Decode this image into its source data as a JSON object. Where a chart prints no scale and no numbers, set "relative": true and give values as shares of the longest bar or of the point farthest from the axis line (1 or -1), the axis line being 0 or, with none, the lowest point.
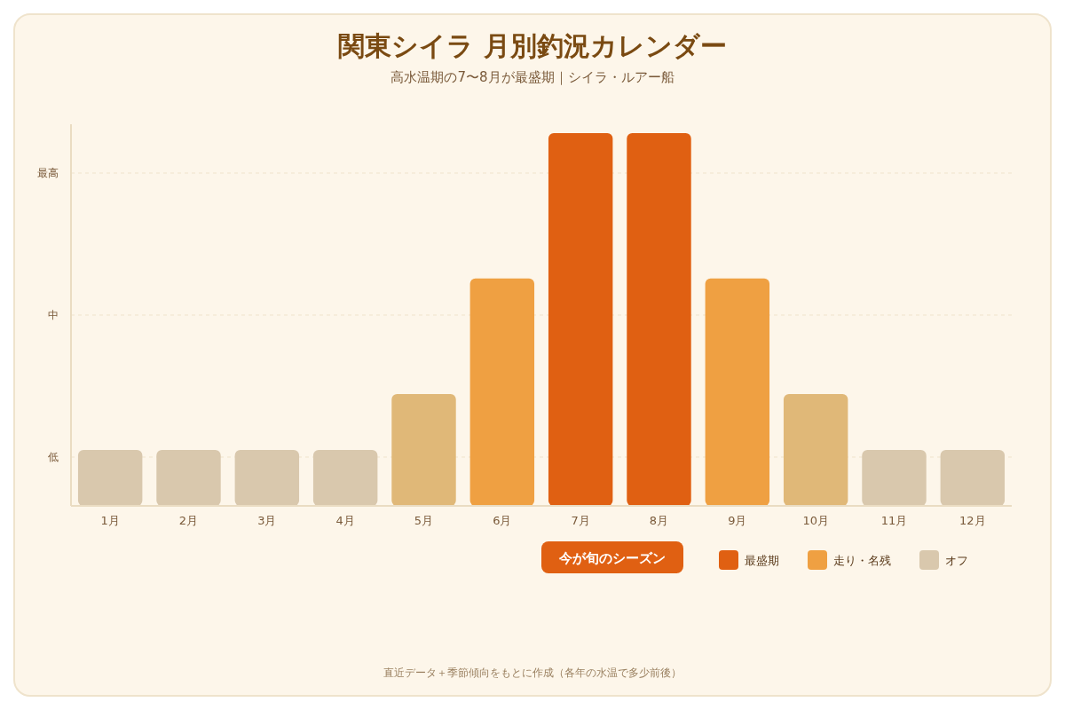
{
  "chart_data": {
    "type": "bar",
    "title": "関東シイラ 月別釣況カレンダー",
    "subtitle": "高水温期の7〜8月が最盛期｜シイラ・ルアー船",
    "categories": [
      "1月",
      "2月",
      "3月",
      "4月",
      "5月",
      "6月",
      "7月",
      "8月",
      "9月",
      "10月",
      "11月",
      "12月"
    ],
    "relative": true,
    "stacked": true,
    "series": [
      {
        "name": "最盛期",
        "color": "#e06012",
        "values": [
          null,
          null,
          null,
          null,
          null,
          null,
          1,
          1,
          null,
          null,
          null,
          null
        ]
      },
      {
        "name": "走り・名残",
        "color": "#efa042",
        "values": [
          null,
          null,
          null,
          null,
          null,
          0.61,
          null,
          null,
          0.61,
          null,
          null,
          null
        ]
      },
      {
        "color": "#e0b878",
        "values": [
          null,
          null,
          null,
          null,
          0.3,
          null,
          null,
          null,
          null,
          0.3,
          null,
          null
        ]
      },
      {
        "name": "オフ",
        "color": "#d9c8ad",
        "values": [
          0.15,
          0.15,
          0.15,
          0.15,
          null,
          null,
          null,
          null,
          null,
          null,
          0.15,
          0.15
        ]
      }
    ],
    "grid": "y",
    "legend": "bottom",
    "annotations": [
      "今が旬のシーズン",
      "直近データ＋季節傾向をもとに作成（各年の水温で多少前後）",
      "低",
      "中",
      "最高"
    ]
  }
}
